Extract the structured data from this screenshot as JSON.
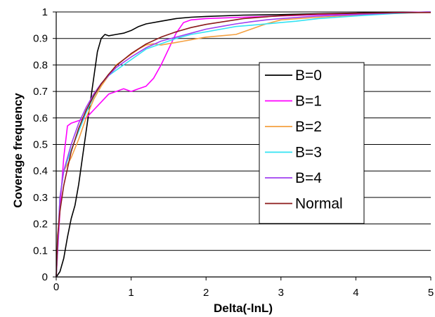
{
  "chart_data": {
    "type": "line",
    "xlabel": "Delta(-lnL)",
    "ylabel": "Coverage frequency",
    "xlim": [
      0,
      5
    ],
    "ylim": [
      0,
      1
    ],
    "x_ticks": [
      "0",
      "1",
      "2",
      "3",
      "4",
      "5"
    ],
    "y_ticks": [
      "0",
      "0.1",
      "0.2",
      "0.3",
      "0.4",
      "0.5",
      "0.6",
      "0.7",
      "0.8",
      "0.9",
      "1"
    ],
    "grid": "horizontal",
    "legend_position": "right",
    "series": [
      {
        "name": "B=0",
        "color": "#000000",
        "x": [
          0,
          0.05,
          0.1,
          0.15,
          0.2,
          0.25,
          0.3,
          0.35,
          0.4,
          0.45,
          0.5,
          0.55,
          0.6,
          0.65,
          0.7,
          0.8,
          0.9,
          1.0,
          1.1,
          1.2,
          1.4,
          1.6,
          1.8,
          2.0,
          2.5,
          3.0,
          3.5,
          4.0,
          4.5,
          5.0
        ],
        "y": [
          0,
          0.02,
          0.07,
          0.15,
          0.22,
          0.27,
          0.35,
          0.45,
          0.55,
          0.65,
          0.75,
          0.85,
          0.9,
          0.915,
          0.91,
          0.915,
          0.92,
          0.93,
          0.945,
          0.955,
          0.965,
          0.975,
          0.98,
          0.983,
          0.988,
          0.99,
          0.993,
          0.996,
          0.998,
          1.0
        ]
      },
      {
        "name": "B=1",
        "color": "#ff00ff",
        "x": [
          0,
          0.03,
          0.06,
          0.1,
          0.15,
          0.2,
          0.3,
          0.4,
          0.5,
          0.6,
          0.7,
          0.8,
          0.9,
          1.0,
          1.1,
          1.2,
          1.3,
          1.4,
          1.5,
          1.6,
          1.7,
          1.8,
          2.0,
          2.5,
          3.0,
          3.5,
          4.0,
          4.5,
          5.0
        ],
        "y": [
          0,
          0.15,
          0.3,
          0.45,
          0.57,
          0.58,
          0.59,
          0.6,
          0.63,
          0.66,
          0.69,
          0.7,
          0.71,
          0.7,
          0.71,
          0.72,
          0.75,
          0.8,
          0.86,
          0.92,
          0.96,
          0.97,
          0.975,
          0.98,
          0.985,
          0.99,
          0.993,
          0.997,
          1.0
        ]
      },
      {
        "name": "B=2",
        "color": "#f4a040",
        "x": [
          0,
          0.05,
          0.1,
          0.2,
          0.3,
          0.4,
          0.5,
          0.6,
          0.7,
          0.8,
          0.9,
          1.0,
          1.1,
          1.2,
          1.3,
          1.4,
          1.5,
          1.6,
          1.7,
          1.8,
          1.9,
          2.0,
          2.2,
          2.4,
          2.6,
          2.8,
          3.0,
          3.5,
          4.0,
          4.5,
          5.0
        ],
        "y": [
          0,
          0.3,
          0.4,
          0.45,
          0.52,
          0.6,
          0.67,
          0.72,
          0.76,
          0.8,
          0.82,
          0.84,
          0.86,
          0.875,
          0.88,
          0.875,
          0.88,
          0.885,
          0.89,
          0.895,
          0.9,
          0.905,
          0.91,
          0.915,
          0.935,
          0.955,
          0.97,
          0.98,
          0.988,
          0.995,
          1.0
        ]
      },
      {
        "name": "B=3",
        "color": "#33e3f3",
        "x": [
          0,
          0.05,
          0.1,
          0.2,
          0.3,
          0.4,
          0.5,
          0.6,
          0.7,
          0.8,
          0.9,
          1.0,
          1.2,
          1.4,
          1.6,
          1.8,
          2.0,
          2.2,
          2.4,
          2.6,
          2.8,
          3.0,
          3.2,
          3.5,
          4.0,
          4.5,
          5.0
        ],
        "y": [
          0,
          0.3,
          0.4,
          0.48,
          0.55,
          0.62,
          0.68,
          0.73,
          0.76,
          0.78,
          0.8,
          0.82,
          0.86,
          0.88,
          0.9,
          0.915,
          0.925,
          0.935,
          0.945,
          0.95,
          0.955,
          0.96,
          0.965,
          0.975,
          0.985,
          0.994,
          1.0
        ]
      },
      {
        "name": "B=4",
        "color": "#a040f0",
        "x": [
          0,
          0.05,
          0.1,
          0.2,
          0.3,
          0.4,
          0.5,
          0.6,
          0.7,
          0.8,
          0.9,
          1.0,
          1.2,
          1.4,
          1.6,
          1.8,
          2.0,
          2.2,
          2.4,
          2.6,
          2.8,
          3.0,
          3.5,
          4.0,
          4.5,
          5.0
        ],
        "y": [
          0,
          0.3,
          0.4,
          0.5,
          0.58,
          0.64,
          0.69,
          0.73,
          0.76,
          0.79,
          0.81,
          0.83,
          0.865,
          0.89,
          0.905,
          0.92,
          0.935,
          0.945,
          0.955,
          0.963,
          0.97,
          0.975,
          0.985,
          0.99,
          0.996,
          1.0
        ]
      },
      {
        "name": "Normal",
        "color": "#8b1a1a",
        "x": [
          0,
          0.02,
          0.05,
          0.1,
          0.2,
          0.3,
          0.4,
          0.5,
          0.6,
          0.7,
          0.8,
          1.0,
          1.2,
          1.4,
          1.6,
          1.8,
          2.0,
          2.5,
          3.0,
          3.5,
          4.0,
          4.5,
          5.0
        ],
        "y": [
          0,
          0.157,
          0.248,
          0.345,
          0.473,
          0.561,
          0.629,
          0.683,
          0.728,
          0.765,
          0.797,
          0.843,
          0.879,
          0.905,
          0.925,
          0.941,
          0.953,
          0.975,
          0.986,
          0.992,
          0.995,
          0.997,
          0.998
        ]
      }
    ]
  }
}
